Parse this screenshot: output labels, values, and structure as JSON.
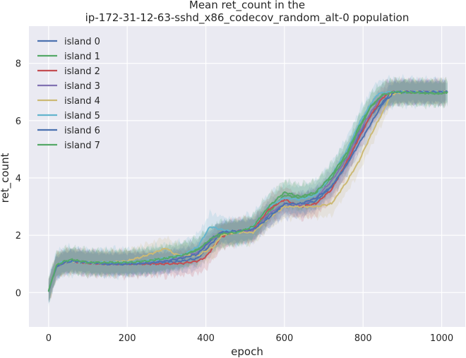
{
  "chart_data": {
    "type": "line",
    "title_line1": "Mean ret_count in the",
    "title_line2": "ip-172-31-12-63-sshd_x86_codecov_random_alt-0 population",
    "xlabel": "epoch",
    "ylabel": "ret_count",
    "xlim": [
      -50,
      1060
    ],
    "ylim": [
      -1.2,
      9.3
    ],
    "xticks": [
      0,
      200,
      400,
      600,
      800,
      1000
    ],
    "yticks": [
      0,
      2,
      4,
      6,
      8
    ],
    "grid": true,
    "legend_position": "top-left",
    "series": [
      {
        "name": "island 0",
        "color": "#4c72b0",
        "band": 0.55,
        "points": [
          [
            0,
            0.05
          ],
          [
            10,
            0.5
          ],
          [
            20,
            0.9
          ],
          [
            40,
            1.05
          ],
          [
            60,
            1.1
          ],
          [
            100,
            1.05
          ],
          [
            150,
            1.0
          ],
          [
            200,
            1.0
          ],
          [
            250,
            1.02
          ],
          [
            300,
            1.05
          ],
          [
            340,
            1.1
          ],
          [
            380,
            1.2
          ],
          [
            420,
            1.8
          ],
          [
            440,
            2.1
          ],
          [
            480,
            2.1
          ],
          [
            520,
            2.2
          ],
          [
            560,
            2.7
          ],
          [
            600,
            3.0
          ],
          [
            640,
            3.05
          ],
          [
            680,
            3.2
          ],
          [
            720,
            3.7
          ],
          [
            760,
            4.5
          ],
          [
            790,
            5.5
          ],
          [
            820,
            6.2
          ],
          [
            840,
            6.5
          ],
          [
            870,
            6.95
          ],
          [
            900,
            7.0
          ],
          [
            1000,
            7.0
          ],
          [
            1010,
            7.0
          ]
        ]
      },
      {
        "name": "island 1",
        "color": "#55a868",
        "band": 0.6,
        "points": [
          [
            0,
            0.05
          ],
          [
            10,
            0.5
          ],
          [
            20,
            0.95
          ],
          [
            40,
            1.1
          ],
          [
            60,
            1.1
          ],
          [
            100,
            1.05
          ],
          [
            150,
            1.02
          ],
          [
            200,
            1.05
          ],
          [
            250,
            1.1
          ],
          [
            300,
            1.2
          ],
          [
            340,
            1.3
          ],
          [
            380,
            1.5
          ],
          [
            420,
            1.9
          ],
          [
            440,
            2.0
          ],
          [
            480,
            2.1
          ],
          [
            520,
            2.2
          ],
          [
            560,
            2.8
          ],
          [
            600,
            3.4
          ],
          [
            640,
            3.3
          ],
          [
            680,
            3.45
          ],
          [
            720,
            4.0
          ],
          [
            760,
            4.8
          ],
          [
            790,
            5.7
          ],
          [
            820,
            6.5
          ],
          [
            850,
            6.9
          ],
          [
            880,
            7.0
          ],
          [
            1000,
            6.95
          ],
          [
            1015,
            7.0
          ]
        ]
      },
      {
        "name": "island 2",
        "color": "#c44e52",
        "band": 0.6,
        "points": [
          [
            0,
            0.05
          ],
          [
            10,
            0.5
          ],
          [
            20,
            0.95
          ],
          [
            40,
            1.05
          ],
          [
            60,
            1.1
          ],
          [
            100,
            1.02
          ],
          [
            150,
            1.0
          ],
          [
            200,
            1.0
          ],
          [
            250,
            1.0
          ],
          [
            300,
            1.0
          ],
          [
            340,
            1.02
          ],
          [
            380,
            1.1
          ],
          [
            400,
            1.25
          ],
          [
            420,
            1.6
          ],
          [
            440,
            1.95
          ],
          [
            480,
            2.15
          ],
          [
            520,
            2.2
          ],
          [
            560,
            2.9
          ],
          [
            600,
            3.25
          ],
          [
            640,
            3.0
          ],
          [
            680,
            3.1
          ],
          [
            720,
            3.6
          ],
          [
            760,
            4.6
          ],
          [
            790,
            5.4
          ],
          [
            820,
            6.2
          ],
          [
            850,
            6.8
          ],
          [
            870,
            7.0
          ],
          [
            1000,
            7.0
          ],
          [
            1010,
            7.0
          ]
        ]
      },
      {
        "name": "island 3",
        "color": "#8172b2",
        "band": 0.55,
        "points": [
          [
            0,
            0.05
          ],
          [
            10,
            0.5
          ],
          [
            20,
            0.9
          ],
          [
            40,
            1.05
          ],
          [
            60,
            1.1
          ],
          [
            100,
            1.05
          ],
          [
            150,
            1.0
          ],
          [
            200,
            1.02
          ],
          [
            250,
            1.05
          ],
          [
            300,
            1.1
          ],
          [
            340,
            1.25
          ],
          [
            380,
            1.4
          ],
          [
            420,
            1.9
          ],
          [
            440,
            2.05
          ],
          [
            480,
            2.1
          ],
          [
            520,
            2.15
          ],
          [
            560,
            2.75
          ],
          [
            600,
            3.1
          ],
          [
            640,
            3.05
          ],
          [
            680,
            3.3
          ],
          [
            720,
            3.9
          ],
          [
            760,
            4.7
          ],
          [
            790,
            5.6
          ],
          [
            820,
            6.3
          ],
          [
            850,
            6.9
          ],
          [
            880,
            7.0
          ],
          [
            1000,
            7.0
          ],
          [
            1010,
            7.0
          ]
        ]
      },
      {
        "name": "island 4",
        "color": "#ccb974",
        "band": 0.55,
        "points": [
          [
            0,
            0.05
          ],
          [
            10,
            0.5
          ],
          [
            20,
            0.95
          ],
          [
            40,
            1.05
          ],
          [
            60,
            1.1
          ],
          [
            100,
            1.05
          ],
          [
            150,
            1.05
          ],
          [
            200,
            1.1
          ],
          [
            250,
            1.3
          ],
          [
            280,
            1.45
          ],
          [
            300,
            1.55
          ],
          [
            320,
            1.35
          ],
          [
            340,
            1.3
          ],
          [
            380,
            1.3
          ],
          [
            420,
            1.6
          ],
          [
            440,
            2.0
          ],
          [
            480,
            2.1
          ],
          [
            520,
            2.1
          ],
          [
            560,
            2.6
          ],
          [
            600,
            3.0
          ],
          [
            640,
            3.0
          ],
          [
            680,
            3.0
          ],
          [
            720,
            3.1
          ],
          [
            760,
            3.9
          ],
          [
            790,
            4.6
          ],
          [
            820,
            5.5
          ],
          [
            850,
            6.3
          ],
          [
            870,
            6.9
          ],
          [
            900,
            7.0
          ],
          [
            1000,
            7.0
          ],
          [
            1010,
            7.0
          ]
        ]
      },
      {
        "name": "island 5",
        "color": "#64b5cd",
        "band": 0.65,
        "points": [
          [
            0,
            0.05
          ],
          [
            10,
            0.5
          ],
          [
            20,
            0.95
          ],
          [
            40,
            1.1
          ],
          [
            60,
            1.1
          ],
          [
            100,
            1.05
          ],
          [
            150,
            1.05
          ],
          [
            200,
            1.05
          ],
          [
            250,
            1.1
          ],
          [
            300,
            1.2
          ],
          [
            340,
            1.3
          ],
          [
            380,
            1.6
          ],
          [
            410,
            2.3
          ],
          [
            440,
            2.2
          ],
          [
            480,
            2.1
          ],
          [
            520,
            2.3
          ],
          [
            560,
            3.0
          ],
          [
            600,
            3.3
          ],
          [
            640,
            3.25
          ],
          [
            680,
            3.4
          ],
          [
            720,
            4.1
          ],
          [
            760,
            5.0
          ],
          [
            790,
            5.9
          ],
          [
            820,
            6.6
          ],
          [
            840,
            6.95
          ],
          [
            870,
            7.0
          ],
          [
            1000,
            7.0
          ],
          [
            1010,
            7.0
          ]
        ]
      },
      {
        "name": "island 6",
        "color": "#4c72b0",
        "band": 0.5,
        "points": [
          [
            0,
            0.05
          ],
          [
            10,
            0.5
          ],
          [
            20,
            0.9
          ],
          [
            40,
            1.05
          ],
          [
            60,
            1.1
          ],
          [
            100,
            1.05
          ],
          [
            150,
            1.0
          ],
          [
            200,
            1.0
          ],
          [
            250,
            1.02
          ],
          [
            300,
            1.1
          ],
          [
            340,
            1.2
          ],
          [
            380,
            1.35
          ],
          [
            420,
            1.95
          ],
          [
            440,
            2.1
          ],
          [
            480,
            2.15
          ],
          [
            520,
            2.2
          ],
          [
            560,
            2.6
          ],
          [
            600,
            3.1
          ],
          [
            640,
            3.1
          ],
          [
            680,
            3.3
          ],
          [
            720,
            3.7
          ],
          [
            760,
            4.5
          ],
          [
            790,
            5.2
          ],
          [
            820,
            5.9
          ],
          [
            850,
            6.6
          ],
          [
            880,
            7.0
          ],
          [
            1000,
            7.0
          ],
          [
            1015,
            7.0
          ]
        ]
      },
      {
        "name": "island 7",
        "color": "#55a868",
        "band": 0.6,
        "points": [
          [
            0,
            0.05
          ],
          [
            10,
            0.5
          ],
          [
            20,
            0.95
          ],
          [
            40,
            1.1
          ],
          [
            60,
            1.15
          ],
          [
            100,
            1.05
          ],
          [
            150,
            1.05
          ],
          [
            200,
            1.05
          ],
          [
            250,
            1.1
          ],
          [
            300,
            1.2
          ],
          [
            340,
            1.3
          ],
          [
            380,
            1.5
          ],
          [
            420,
            1.95
          ],
          [
            440,
            2.05
          ],
          [
            480,
            2.1
          ],
          [
            520,
            2.3
          ],
          [
            560,
            3.0
          ],
          [
            600,
            3.5
          ],
          [
            640,
            3.35
          ],
          [
            680,
            3.5
          ],
          [
            720,
            4.1
          ],
          [
            760,
            4.9
          ],
          [
            790,
            5.8
          ],
          [
            820,
            6.5
          ],
          [
            850,
            6.9
          ],
          [
            880,
            7.0
          ],
          [
            1000,
            6.95
          ],
          [
            1015,
            7.0
          ]
        ]
      }
    ]
  }
}
